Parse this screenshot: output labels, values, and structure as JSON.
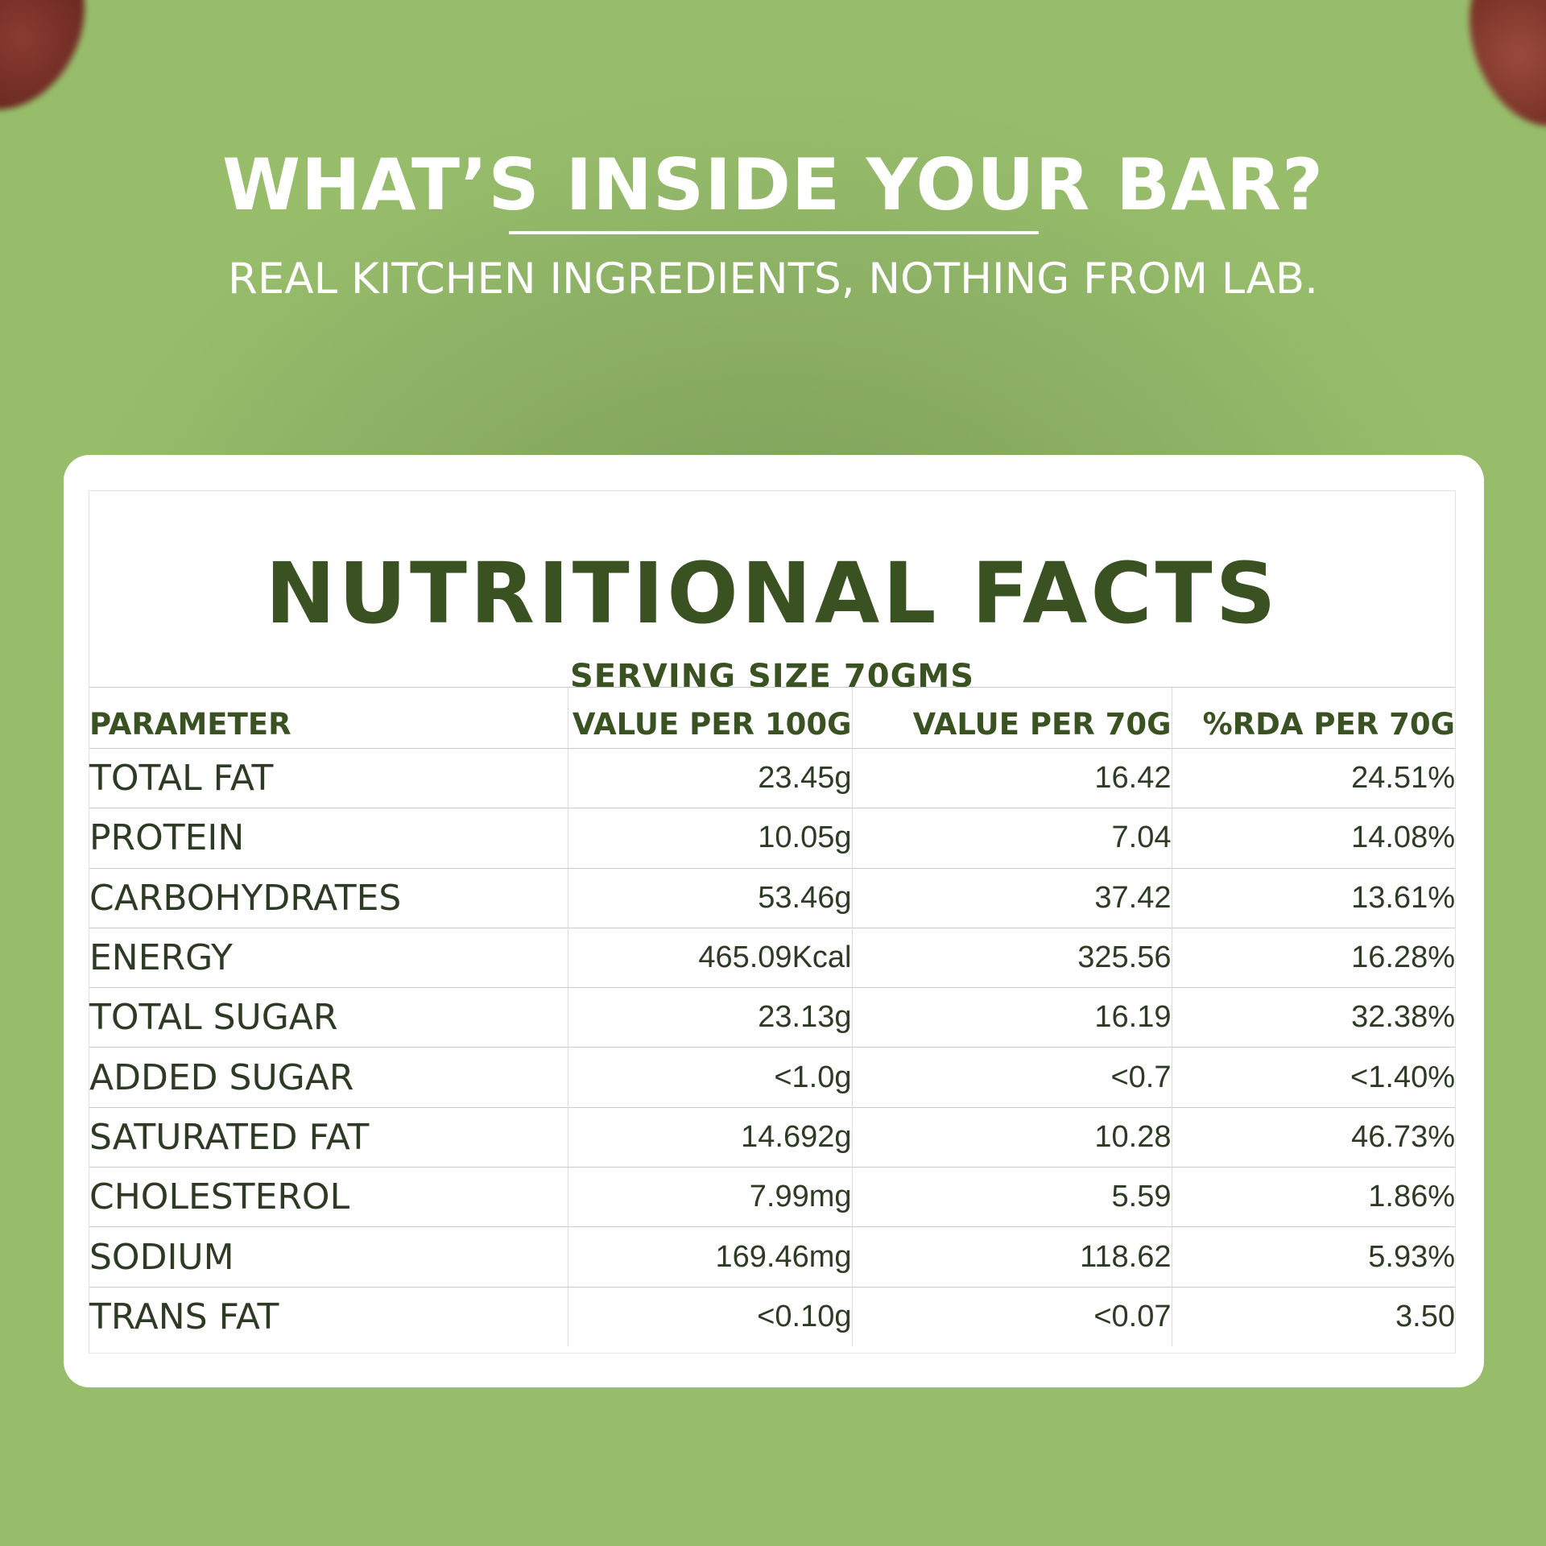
{
  "header": {
    "headline": "WHAT’S INSIDE YOUR BAR?",
    "subline": "REAL KITCHEN INGREDIENTS, NOTHING FROM LAB."
  },
  "card": {
    "title": "NUTRITIONAL FACTS",
    "serving": "SERVING SIZE 70GMS",
    "columns": [
      "PARAMETER",
      "VALUE PER 100G",
      "VALUE PER 70G",
      "%RDA PER 70G"
    ],
    "rows": [
      {
        "parameter": "TOTAL FAT",
        "per100": "23.45g",
        "per70": "16.42",
        "rda": "24.51%"
      },
      {
        "parameter": "PROTEIN",
        "per100": "10.05g",
        "per70": "7.04",
        "rda": "14.08%"
      },
      {
        "parameter": "CARBOHYDRATES",
        "per100": "53.46g",
        "per70": "37.42",
        "rda": "13.61%"
      },
      {
        "parameter": "ENERGY",
        "per100": "465.09Kcal",
        "per70": "325.56",
        "rda": "16.28%"
      },
      {
        "parameter": "TOTAL SUGAR",
        "per100": "23.13g",
        "per70": "16.19",
        "rda": "32.38%"
      },
      {
        "parameter": "ADDED SUGAR",
        "per100": "<1.0g",
        "per70": "<0.7",
        "rda": "<1.40%"
      },
      {
        "parameter": "SATURATED FAT",
        "per100": "14.692g",
        "per70": "10.28",
        "rda": "46.73%"
      },
      {
        "parameter": "CHOLESTEROL",
        "per100": "7.99mg",
        "per70": "5.59",
        "rda": "1.86%"
      },
      {
        "parameter": "SODIUM",
        "per100": "169.46mg",
        "per70": "118.62",
        "rda": "5.93%"
      },
      {
        "parameter": "TRANS FAT",
        "per100": "<0.10g",
        "per70": "<0.07",
        "rda": "3.50"
      }
    ]
  }
}
